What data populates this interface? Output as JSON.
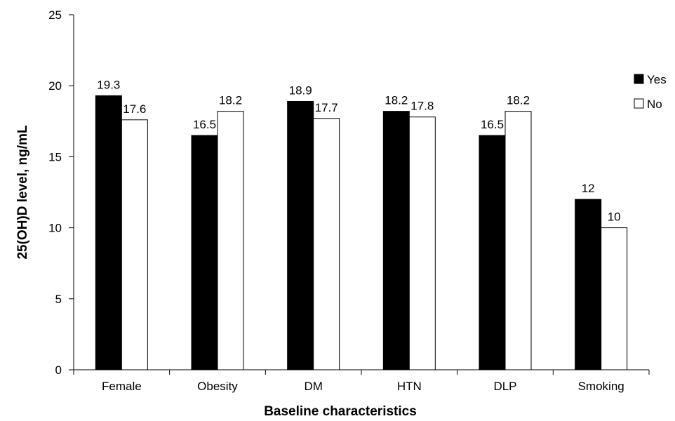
{
  "chart_data": {
    "type": "bar",
    "categories": [
      "Female",
      "Obesity",
      "DM",
      "HTN",
      "DLP",
      "Smoking"
    ],
    "series": [
      {
        "name": "Yes",
        "values": [
          19.3,
          16.5,
          18.9,
          18.2,
          16.5,
          12
        ],
        "labels": [
          "19.3",
          "16.5",
          "18.9",
          "18.2",
          "16.5",
          "12"
        ],
        "color": "#000000"
      },
      {
        "name": "No",
        "values": [
          17.6,
          18.2,
          17.7,
          17.8,
          18.2,
          10
        ],
        "labels": [
          "17.6",
          "18.2",
          "17.7",
          "17.8",
          "18.2",
          "10"
        ],
        "color": "#ffffff"
      }
    ],
    "xlabel": "Baseline characteristics",
    "ylabel": "25(OH)D level, ng/mL",
    "ylim": [
      0,
      25
    ],
    "yticks": [
      "0",
      "5",
      "10",
      "15",
      "20",
      "25"
    ],
    "legend_position": "top-right",
    "grid": false
  }
}
